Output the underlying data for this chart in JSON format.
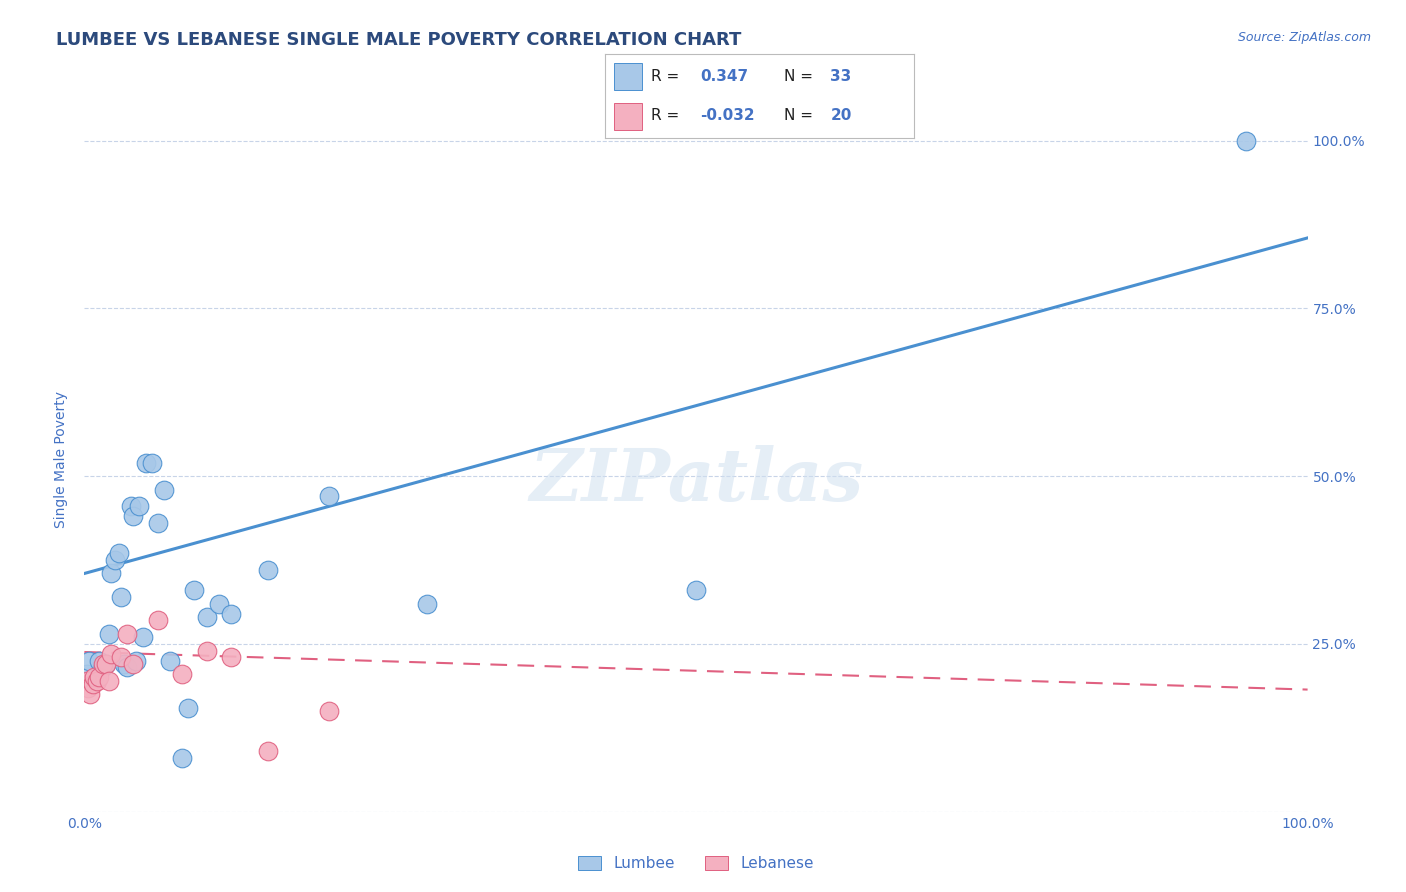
{
  "title": "LUMBEE VS LEBANESE SINGLE MALE POVERTY CORRELATION CHART",
  "source_text": "Source: ZipAtlas.com",
  "ylabel": "Single Male Poverty",
  "xlabel": "",
  "lumbee_r": 0.347,
  "lumbee_n": 33,
  "lebanese_r": -0.032,
  "lebanese_n": 20,
  "lumbee_color": "#a8c8e8",
  "lebanese_color": "#f4b0c0",
  "lumbee_line_color": "#4a90d0",
  "lebanese_line_color": "#e06080",
  "watermark_text": "ZIPatlas",
  "lumbee_x": [
    0.002,
    0.004,
    0.012,
    0.015,
    0.018,
    0.02,
    0.022,
    0.025,
    0.028,
    0.03,
    0.032,
    0.035,
    0.038,
    0.04,
    0.042,
    0.045,
    0.048,
    0.05,
    0.055,
    0.06,
    0.065,
    0.07,
    0.08,
    0.085,
    0.09,
    0.1,
    0.11,
    0.12,
    0.15,
    0.2,
    0.28,
    0.5,
    0.95
  ],
  "lumbee_y": [
    0.205,
    0.225,
    0.225,
    0.215,
    0.22,
    0.265,
    0.355,
    0.375,
    0.385,
    0.32,
    0.22,
    0.215,
    0.455,
    0.44,
    0.225,
    0.455,
    0.26,
    0.52,
    0.52,
    0.43,
    0.48,
    0.225,
    0.08,
    0.155,
    0.33,
    0.29,
    0.31,
    0.295,
    0.36,
    0.47,
    0.31,
    0.33,
    1.0
  ],
  "lebanese_x": [
    0.002,
    0.003,
    0.005,
    0.007,
    0.008,
    0.01,
    0.012,
    0.015,
    0.018,
    0.02,
    0.022,
    0.03,
    0.035,
    0.04,
    0.06,
    0.08,
    0.1,
    0.12,
    0.15,
    0.2
  ],
  "lebanese_y": [
    0.195,
    0.185,
    0.175,
    0.19,
    0.2,
    0.195,
    0.2,
    0.22,
    0.22,
    0.195,
    0.235,
    0.23,
    0.265,
    0.22,
    0.285,
    0.205,
    0.24,
    0.23,
    0.09,
    0.15
  ],
  "lumbee_trendline_x": [
    0.0,
    1.0
  ],
  "lumbee_trendline_y": [
    0.355,
    0.855
  ],
  "lebanese_trendline_x": [
    0.0,
    1.0
  ],
  "lebanese_trendline_y": [
    0.238,
    0.182
  ],
  "xlim": [
    0.0,
    1.0
  ],
  "ylim": [
    0.0,
    1.05
  ],
  "xticks": [
    0.0,
    0.25,
    0.5,
    0.75,
    1.0
  ],
  "xticklabels": [
    "0.0%",
    "",
    "",
    "",
    "100.0%"
  ],
  "yticks": [
    0.0,
    0.25,
    0.5,
    0.75,
    1.0
  ],
  "yticklabels_right": [
    "",
    "25.0%",
    "50.0%",
    "75.0%",
    "100.0%"
  ],
  "grid_color": "#c8d4e8",
  "background_color": "#ffffff",
  "title_color": "#2c4a7c",
  "axis_label_color": "#4472c4",
  "tick_color": "#4472c4",
  "legend_r_color": "#4472c4",
  "legend_n_color": "#4472c4",
  "title_fontsize": 13,
  "axis_label_fontsize": 10,
  "tick_fontsize": 10,
  "legend_fontsize": 11
}
